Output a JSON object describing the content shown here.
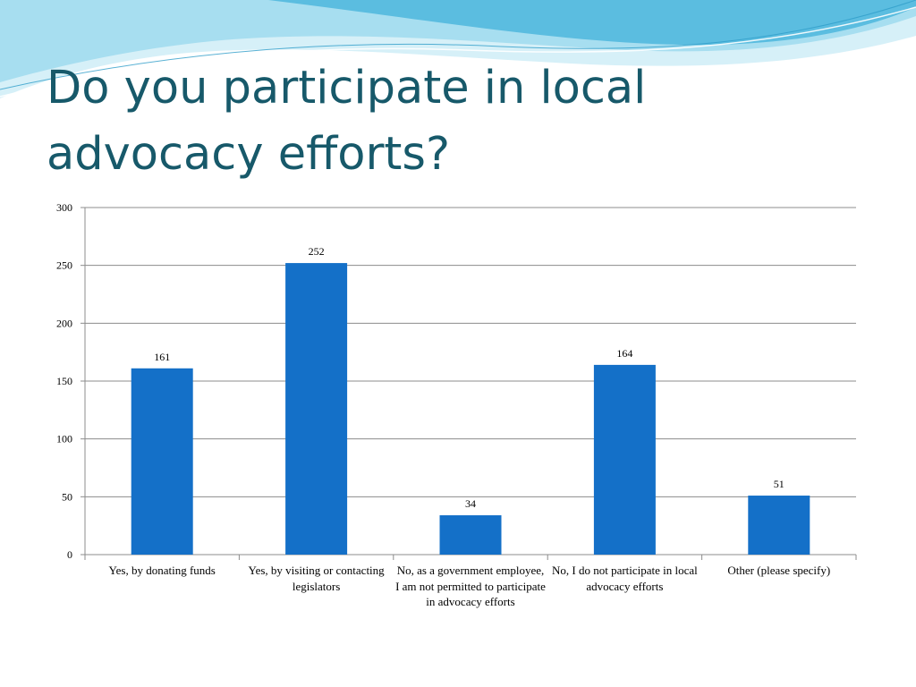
{
  "slide": {
    "title_line1": "Do you participate in local",
    "title_line2": "advocacy efforts?"
  },
  "colors": {
    "bar": "#1470c8",
    "title": "#17596a",
    "grid": "#8c8c8c",
    "wave_light": "#bfe6f3",
    "wave_mid": "#8ed2ea",
    "wave_dark": "#3ba7d3"
  },
  "chart_data": {
    "type": "bar",
    "title": "",
    "xlabel": "",
    "ylabel": "",
    "ylim": [
      0,
      300
    ],
    "yticks": [
      0,
      50,
      100,
      150,
      200,
      250,
      300
    ],
    "grid": true,
    "legend": "none",
    "categories": [
      "Yes, by donating funds",
      "Yes, by visiting or contacting legislators",
      "No, as a government employee, I am not permitted to participate in advocacy efforts",
      "No, I do not participate in local advocacy efforts",
      "Other (please specify)"
    ],
    "values": [
      161,
      252,
      34,
      164,
      51
    ]
  }
}
